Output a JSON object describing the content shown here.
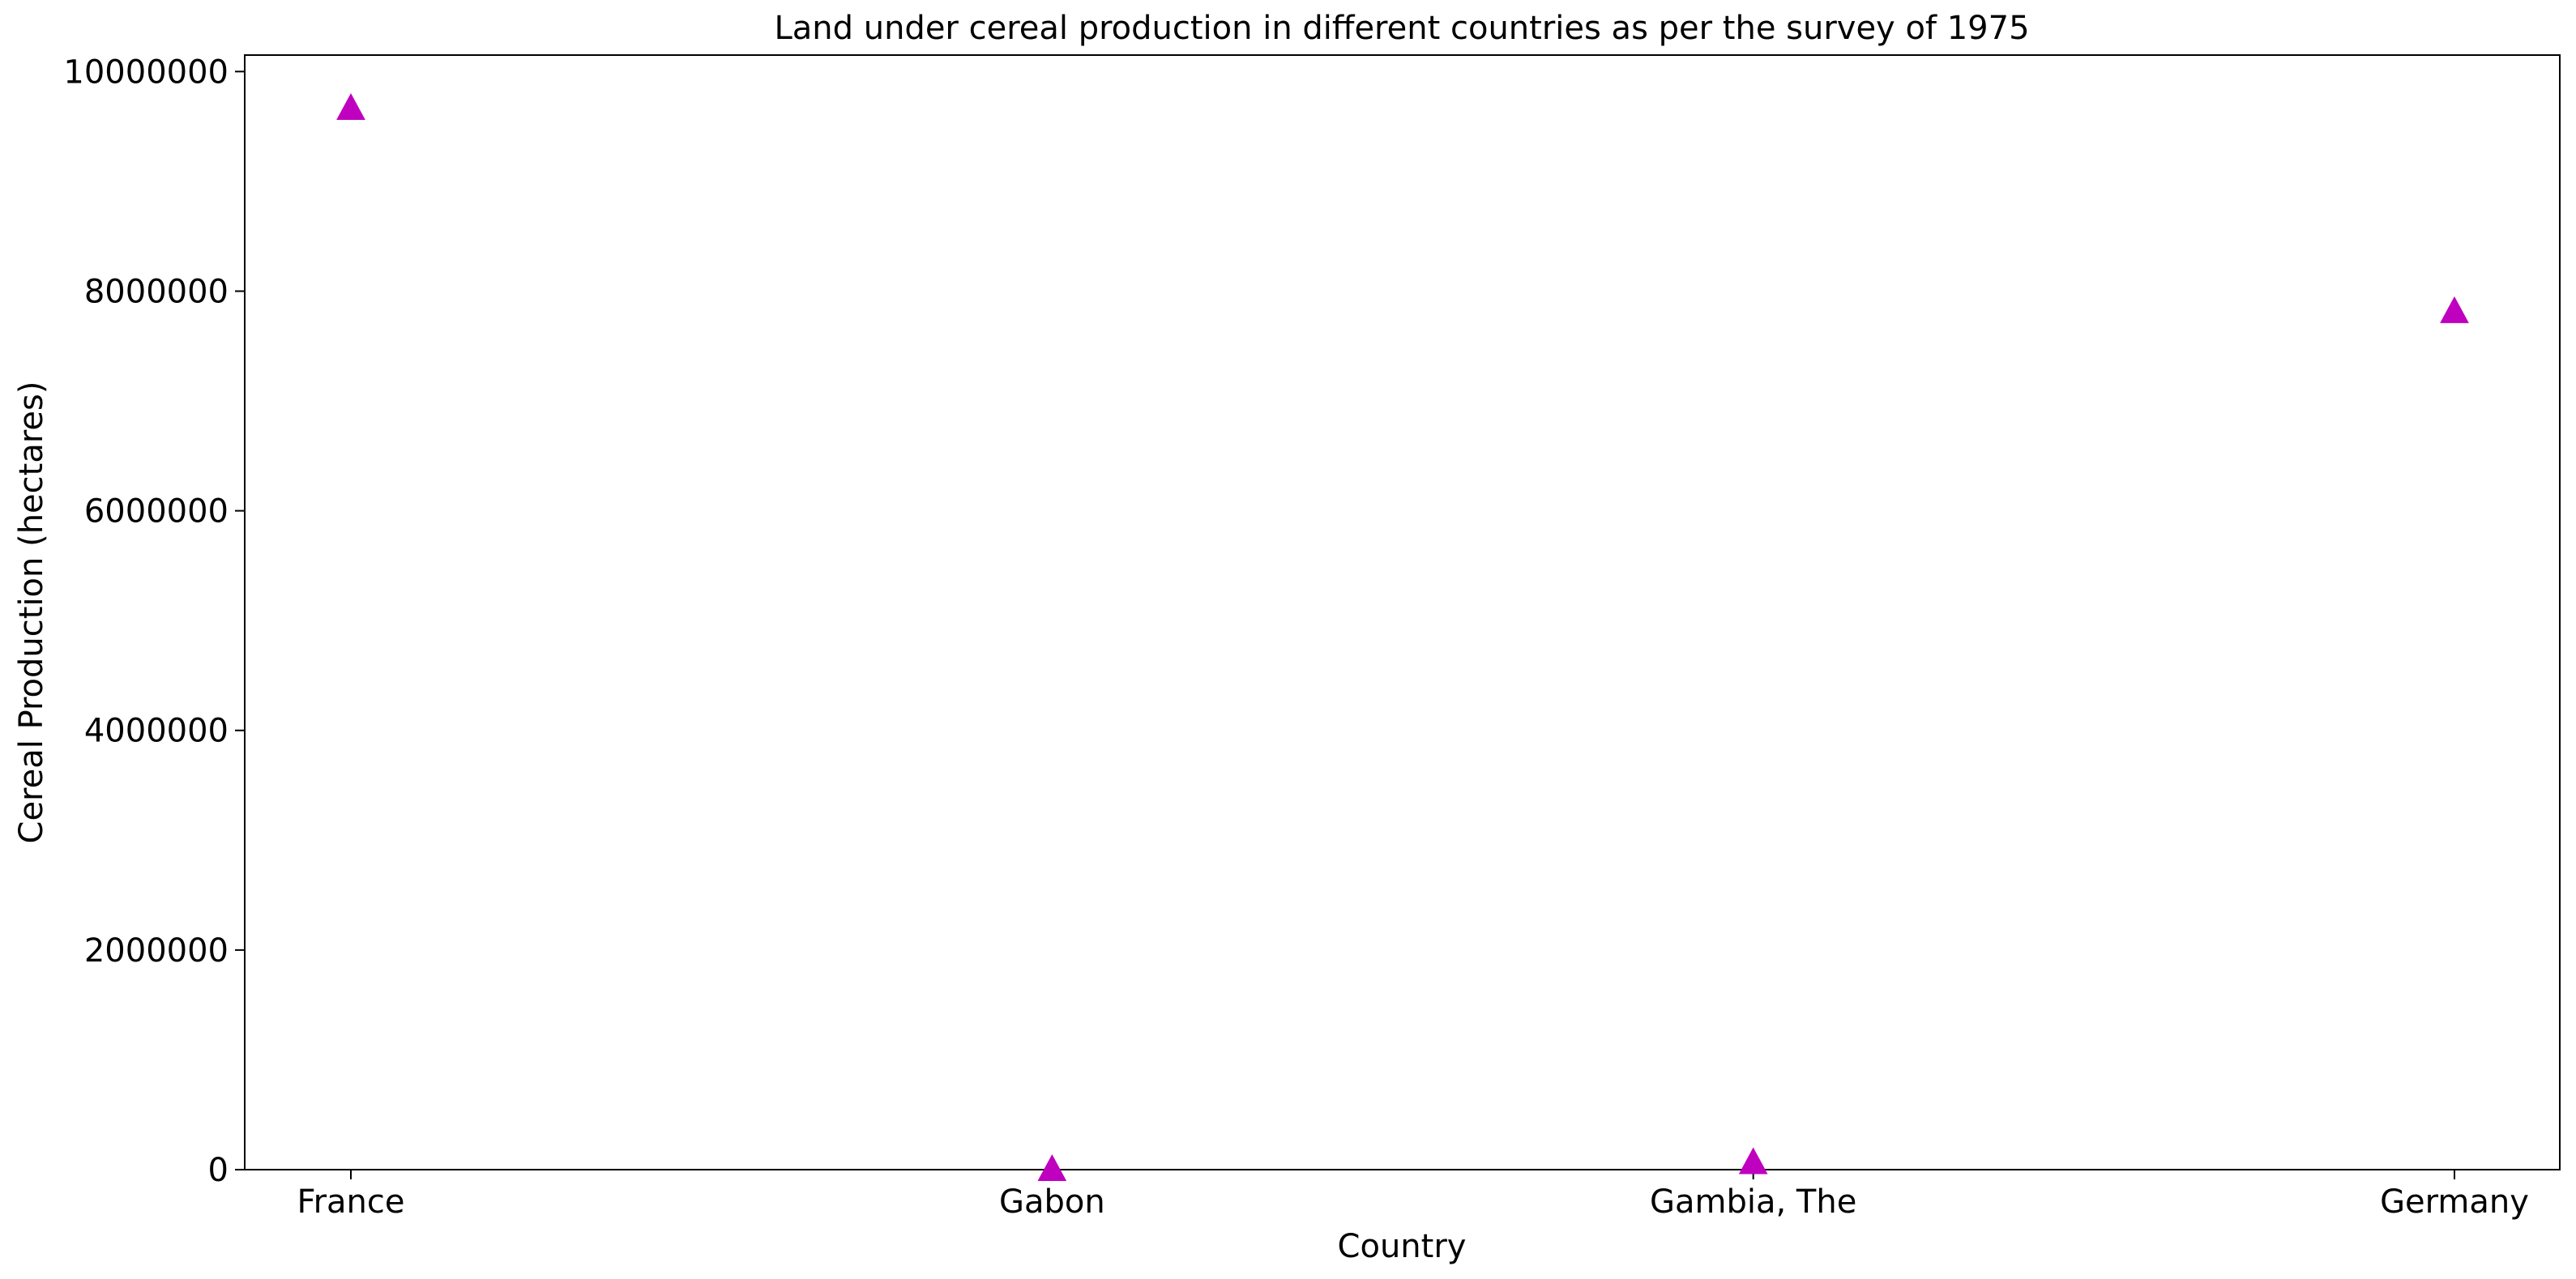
{
  "chart_data": {
    "type": "scatter",
    "title": "Land under cereal  production in different countries as per the survey of 1975",
    "xlabel": "Country",
    "ylabel": "Cereal Production (hectares)",
    "categories": [
      "France",
      "Gabon",
      "Gambia, The",
      "Germany"
    ],
    "values": [
      9670000,
      7000,
      70000,
      7820000
    ],
    "ylim": [
      0,
      10150000
    ],
    "yticks": [
      0,
      2000000,
      4000000,
      6000000,
      8000000,
      10000000
    ],
    "ytick_labels": [
      "0",
      "2000000",
      "4000000",
      "6000000",
      "8000000",
      "10000000"
    ],
    "marker": "triangle",
    "marker_color": "#bf00bf",
    "grid": false,
    "legend": "none"
  }
}
